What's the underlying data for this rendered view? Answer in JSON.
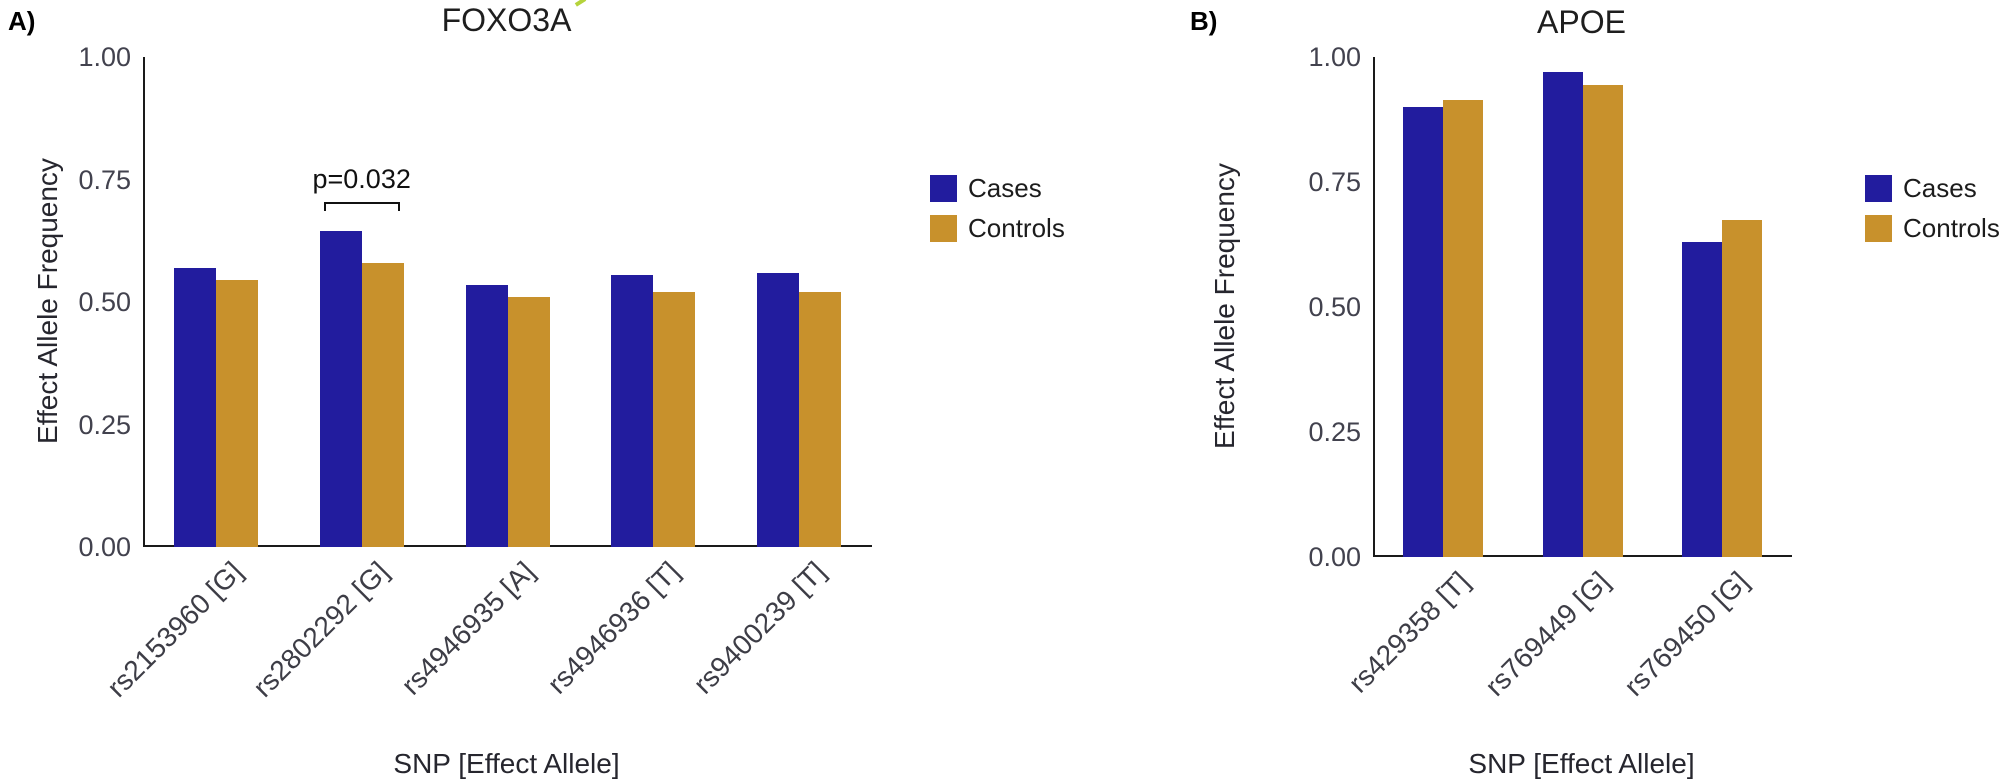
{
  "figure": {
    "background": "#ffffff",
    "stray_mark_color": "#b5d33c"
  },
  "chart_data": [
    {
      "type": "bar",
      "panel_label": "A)",
      "title": "FOXO3A",
      "xlabel": "SNP [Effect Allele]",
      "ylabel": "Effect Allele Frequency",
      "ylim": [
        0,
        1
      ],
      "yticks": [
        "0.00",
        "0.25",
        "0.50",
        "0.75",
        "1.00"
      ],
      "grid": false,
      "legend_position": "right",
      "categories": [
        "rs2153960 [G]",
        "rs2802292 [G]",
        "rs4946935 [A]",
        "rs4946936 [T]",
        "rs9400239 [T]"
      ],
      "series": [
        {
          "name": "Cases",
          "color": "#221C9E",
          "values": [
            0.57,
            0.645,
            0.535,
            0.555,
            0.56
          ]
        },
        {
          "name": "Controls",
          "color": "#C8912C",
          "values": [
            0.545,
            0.58,
            0.51,
            0.52,
            0.52
          ]
        }
      ],
      "annotation": {
        "text": "p=0.032",
        "group_index": 1,
        "y": 0.705
      }
    },
    {
      "type": "bar",
      "panel_label": "B)",
      "title": "APOE",
      "xlabel": "SNP [Effect Allele]",
      "ylabel": "Effect Allele Frequency",
      "ylim": [
        0,
        1
      ],
      "yticks": [
        "0.00",
        "0.25",
        "0.50",
        "0.75",
        "1.00"
      ],
      "grid": false,
      "legend_position": "right",
      "categories": [
        "rs429358 [T]",
        "rs769449 [G]",
        "rs769450 [G]"
      ],
      "series": [
        {
          "name": "Cases",
          "color": "#221C9E",
          "values": [
            0.9,
            0.97,
            0.63
          ]
        },
        {
          "name": "Controls",
          "color": "#C8912C",
          "values": [
            0.915,
            0.945,
            0.675
          ]
        }
      ],
      "annotation": null
    }
  ]
}
